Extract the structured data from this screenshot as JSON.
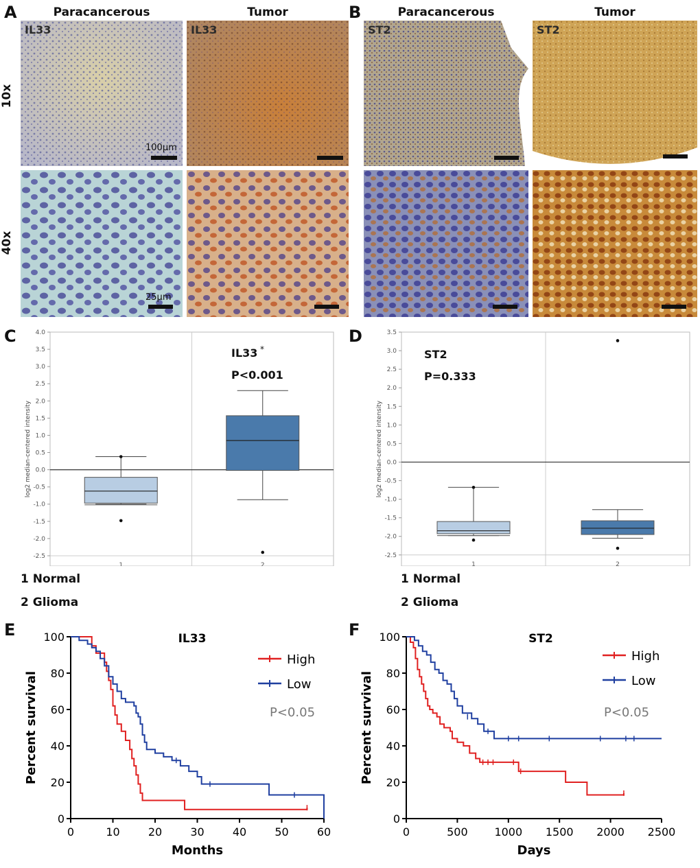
{
  "panels": {
    "A": {
      "letter": "A",
      "col_titles": [
        "Paracancerous",
        "Tumor"
      ],
      "row_labels": [
        "10x",
        "40x"
      ],
      "image_labels": [
        "IL33",
        "IL33"
      ],
      "scale_labels": [
        "100μm",
        "25μm"
      ]
    },
    "B": {
      "letter": "B",
      "col_titles": [
        "Paracancerous",
        "Tumor"
      ],
      "image_labels": [
        "ST2",
        "ST2"
      ]
    },
    "C": {
      "letter": "C"
    },
    "D": {
      "letter": "D"
    },
    "E": {
      "letter": "E"
    },
    "F": {
      "letter": "F"
    }
  },
  "legend_cd": {
    "item1": "1 Normal",
    "item2": "2 Glioma"
  },
  "colors": {
    "normal_box": "#b8cde3",
    "glioma_box": "#4a7aab",
    "high": "#e02020",
    "low": "#1f3fa0",
    "pvalue_grey": "#777777"
  },
  "chart_data": [
    {
      "id": "C",
      "type": "box",
      "title": "IL33",
      "title_mark": "*",
      "annotation": "P<0.001",
      "ylabel": "log2 median-centered intensity",
      "ylim": [
        -2.8,
        4.0
      ],
      "yticks": [
        4.0,
        3.5,
        3.0,
        2.5,
        2.0,
        1.5,
        1.0,
        0.5,
        0.0,
        -0.5,
        -1.0,
        -1.5,
        -2.0,
        -2.5
      ],
      "ytick_labels": [
        "4.0",
        "3.5",
        "3.0",
        "2.5",
        "2.0",
        "1.5",
        "1.0",
        "0.5",
        "0.0",
        "-0.5",
        "-1.0",
        "-1.5",
        "-2.0",
        "-2.5"
      ],
      "categories": [
        "1",
        "2"
      ],
      "boxes": [
        {
          "whisker_low": -1.0,
          "q1": -0.97,
          "median": -0.62,
          "q3": -0.22,
          "whisker_high": 0.38,
          "outliers": [
            0.38,
            -1.48
          ],
          "extra_line": -1.02
        },
        {
          "whisker_low": -0.87,
          "q1": -0.02,
          "median": 0.85,
          "q3": 1.57,
          "whisker_high": 2.3,
          "outliers": [
            -2.4
          ]
        }
      ]
    },
    {
      "id": "D",
      "type": "box",
      "title": "ST2",
      "annotation": "P=0.333",
      "ylabel": "log2 median-centered intensity",
      "ylim": [
        -2.8,
        3.5
      ],
      "yticks": [
        3.5,
        3.0,
        2.5,
        2.0,
        1.5,
        1.0,
        0.5,
        0.0,
        -0.5,
        -1.0,
        -1.5,
        -2.0,
        -2.5
      ],
      "ytick_labels": [
        "3.5",
        "3.0",
        "2.5",
        "2.0",
        "1.5",
        "1.0",
        "0.5",
        "0.0",
        "-0.5",
        "-1.0",
        "-1.5",
        "-2.0",
        "-2.5"
      ],
      "categories": [
        "1",
        "2"
      ],
      "boxes": [
        {
          "whisker_low": -1.98,
          "q1": -1.93,
          "median": -1.85,
          "q3": -1.6,
          "whisker_high": -0.68,
          "outliers": [
            -0.68,
            -2.1
          ],
          "extra_line": -1.98
        },
        {
          "whisker_low": -2.05,
          "q1": -1.95,
          "median": -1.78,
          "q3": -1.58,
          "whisker_high": -1.28,
          "outliers": [
            -2.32,
            3.27
          ]
        }
      ]
    },
    {
      "id": "E",
      "type": "line",
      "title": "IL33",
      "xlabel": "Months",
      "ylabel": "Percent survival",
      "xlim": [
        0,
        60
      ],
      "ylim": [
        0,
        100
      ],
      "xticks": [
        0,
        10,
        20,
        30,
        40,
        50,
        60
      ],
      "xtick_labels": [
        "0",
        "10",
        "20",
        "30",
        "40",
        "50",
        "60"
      ],
      "yticks": [
        0,
        20,
        40,
        60,
        80,
        100
      ],
      "ytick_labels": [
        "0",
        "20",
        "40",
        "60",
        "80",
        "100"
      ],
      "annotation": "P<0.05",
      "series": [
        {
          "name": "High",
          "color": "#e02020",
          "steps": [
            [
              0,
              100
            ],
            [
              4,
              100
            ],
            [
              5,
              95
            ],
            [
              6,
              91
            ],
            [
              8,
              86
            ],
            [
              8.5,
              81
            ],
            [
              9,
              76
            ],
            [
              9.5,
              71
            ],
            [
              10,
              62
            ],
            [
              10.5,
              57
            ],
            [
              11,
              52
            ],
            [
              12,
              48
            ],
            [
              13,
              43
            ],
            [
              14,
              38
            ],
            [
              14.5,
              33
            ],
            [
              15,
              29
            ],
            [
              15.5,
              24
            ],
            [
              16,
              19
            ],
            [
              16.5,
              14
            ],
            [
              17,
              10
            ],
            [
              27,
              10
            ],
            [
              27,
              5
            ],
            [
              56,
              5
            ],
            [
              56,
              6
            ]
          ],
          "censors": [
            [
              56,
              6
            ]
          ]
        },
        {
          "name": "Low",
          "color": "#1f3fa0",
          "steps": [
            [
              0,
              100
            ],
            [
              2,
              98
            ],
            [
              4,
              96
            ],
            [
              5,
              94
            ],
            [
              6,
              92
            ],
            [
              7,
              88
            ],
            [
              8,
              84
            ],
            [
              9,
              78
            ],
            [
              10,
              74
            ],
            [
              11,
              70
            ],
            [
              12,
              66
            ],
            [
              13,
              64
            ],
            [
              14,
              64
            ],
            [
              15,
              62
            ],
            [
              15.5,
              58
            ],
            [
              16,
              56
            ],
            [
              16.5,
              52
            ],
            [
              17,
              46
            ],
            [
              17.5,
              42
            ],
            [
              18,
              38
            ],
            [
              20,
              36
            ],
            [
              22,
              34
            ],
            [
              24,
              32
            ],
            [
              26,
              29
            ],
            [
              28,
              26
            ],
            [
              30,
              23
            ],
            [
              31,
              19
            ],
            [
              46,
              19
            ],
            [
              47,
              13
            ],
            [
              60,
              13
            ],
            [
              60,
              0
            ]
          ],
          "censors": [
            [
              25,
              32
            ],
            [
              33,
              19
            ],
            [
              53,
              13
            ]
          ]
        }
      ]
    },
    {
      "id": "F",
      "type": "line",
      "title": "ST2",
      "xlabel": "Days",
      "ylabel": "Percent survival",
      "xlim": [
        0,
        2500
      ],
      "ylim": [
        0,
        100
      ],
      "xticks": [
        0,
        500,
        1000,
        1500,
        2000,
        2500
      ],
      "xtick_labels": [
        "0",
        "500",
        "1000",
        "1500",
        "2000",
        "2500"
      ],
      "yticks": [
        0,
        20,
        40,
        60,
        80,
        100
      ],
      "ytick_labels": [
        "0",
        "20",
        "40",
        "60",
        "80",
        "100"
      ],
      "annotation": "P<0.05",
      "series": [
        {
          "name": "High",
          "color": "#e02020",
          "steps": [
            [
              0,
              100
            ],
            [
              40,
              97
            ],
            [
              70,
              94
            ],
            [
              90,
              88
            ],
            [
              110,
              82
            ],
            [
              130,
              78
            ],
            [
              150,
              74
            ],
            [
              170,
              70
            ],
            [
              190,
              66
            ],
            [
              210,
              62
            ],
            [
              230,
              60
            ],
            [
              260,
              58
            ],
            [
              300,
              56
            ],
            [
              330,
              52
            ],
            [
              370,
              50
            ],
            [
              430,
              48
            ],
            [
              450,
              44
            ],
            [
              500,
              42
            ],
            [
              560,
              40
            ],
            [
              620,
              36
            ],
            [
              680,
              33
            ],
            [
              720,
              31
            ],
            [
              1100,
              31
            ],
            [
              1100,
              26
            ],
            [
              1560,
              26
            ],
            [
              1560,
              20
            ],
            [
              1770,
              20
            ],
            [
              1770,
              13
            ],
            [
              2130,
              13
            ],
            [
              2130,
              14
            ]
          ],
          "censors": [
            [
              750,
              31
            ],
            [
              800,
              31
            ],
            [
              850,
              31
            ],
            [
              1050,
              31
            ],
            [
              1120,
              26
            ],
            [
              2130,
              14
            ]
          ]
        },
        {
          "name": "Low",
          "color": "#1f3fa0",
          "steps": [
            [
              0,
              100
            ],
            [
              80,
              98
            ],
            [
              120,
              95
            ],
            [
              160,
              92
            ],
            [
              200,
              90
            ],
            [
              240,
              86
            ],
            [
              280,
              82
            ],
            [
              320,
              80
            ],
            [
              360,
              76
            ],
            [
              400,
              74
            ],
            [
              440,
              70
            ],
            [
              470,
              66
            ],
            [
              500,
              62
            ],
            [
              550,
              58
            ],
            [
              640,
              55
            ],
            [
              700,
              52
            ],
            [
              760,
              48
            ],
            [
              850,
              48
            ],
            [
              860,
              44
            ],
            [
              2500,
              44
            ]
          ],
          "censors": [
            [
              600,
              56
            ],
            [
              800,
              48
            ],
            [
              1000,
              44
            ],
            [
              1100,
              44
            ],
            [
              1400,
              44
            ],
            [
              1900,
              44
            ],
            [
              2150,
              44
            ],
            [
              2230,
              44
            ]
          ]
        }
      ]
    }
  ]
}
